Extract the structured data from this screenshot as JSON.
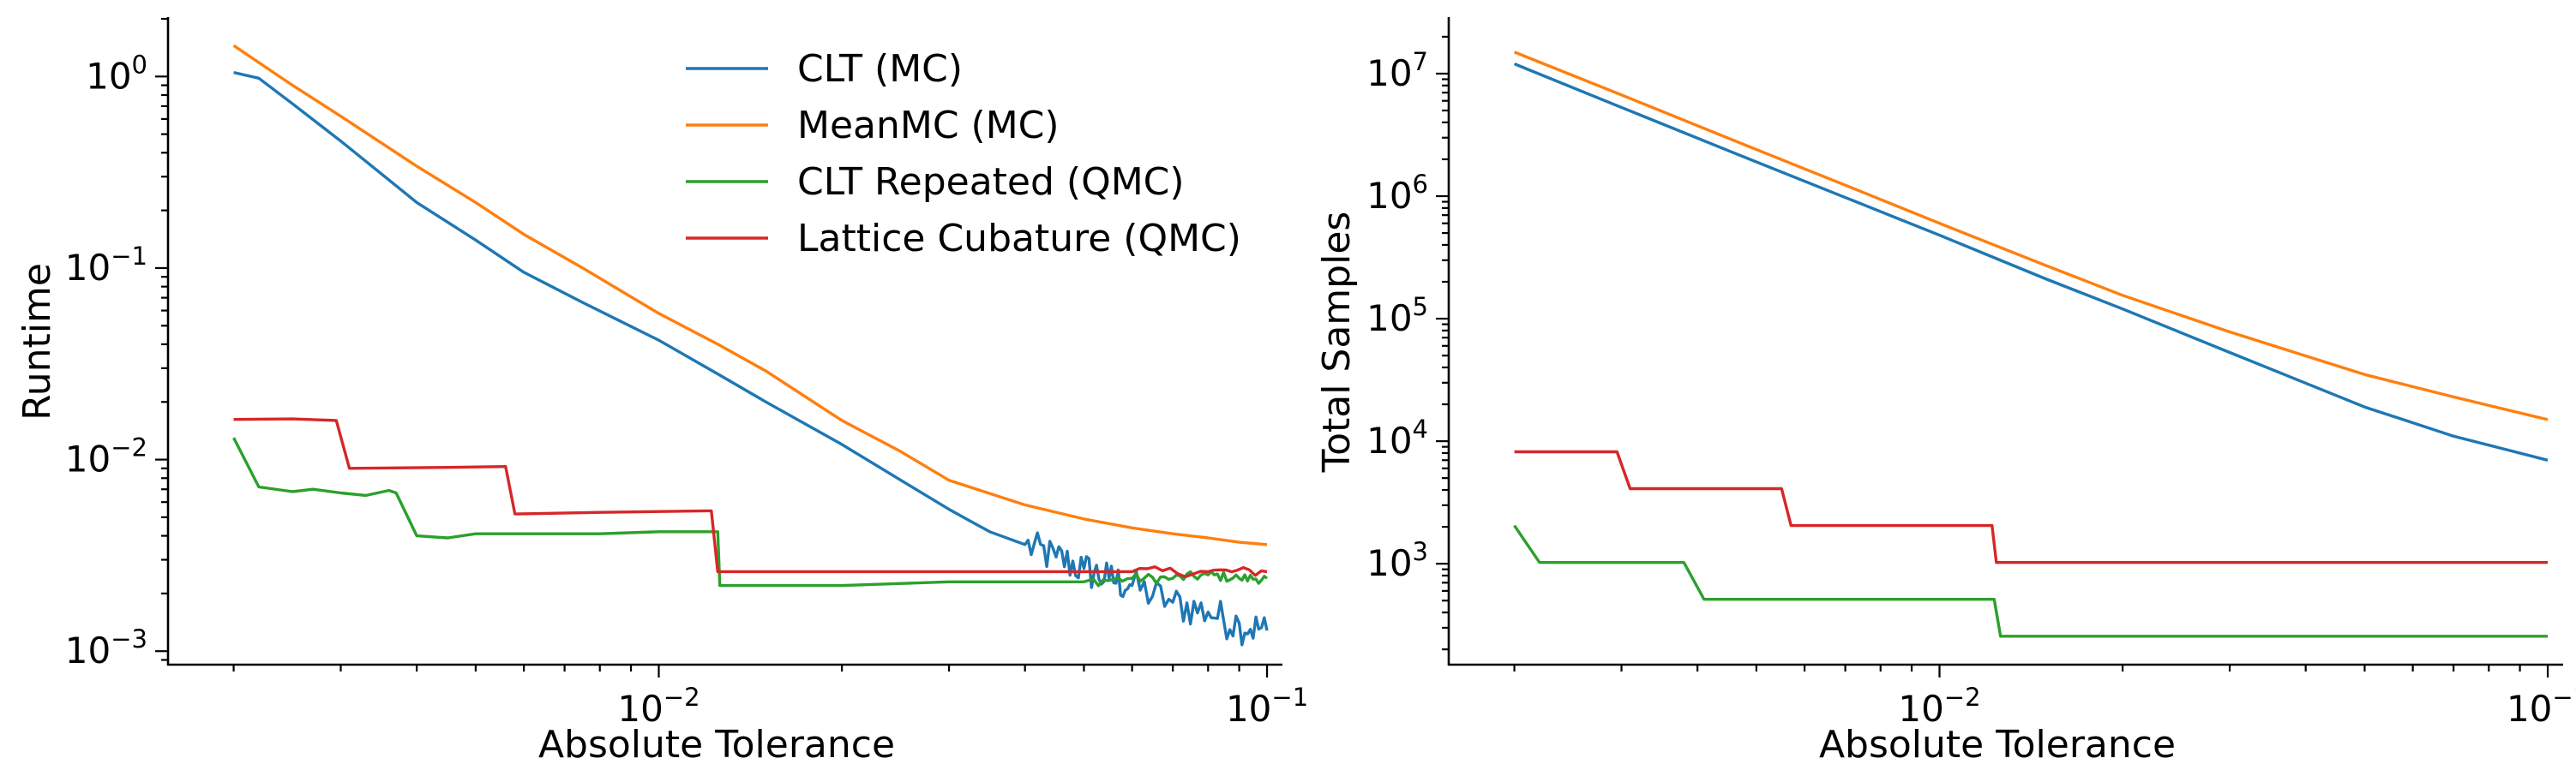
{
  "chart_data": [
    {
      "type": "line",
      "xlabel": "Absolute Tolerance",
      "ylabel": "Runtime",
      "xscale": "log",
      "yscale": "log",
      "xlim": [
        0.00156,
        0.106
      ],
      "ylim": [
        0.00085,
        2.0
      ],
      "xticks": [
        {
          "base": "10",
          "exp": "−2",
          "value": 0.01
        },
        {
          "base": "10",
          "exp": "−1",
          "value": 0.1
        }
      ],
      "yticks": [
        {
          "base": "10",
          "exp": "−3",
          "value": 0.001
        },
        {
          "base": "10",
          "exp": "−2",
          "value": 0.01
        },
        {
          "base": "10",
          "exp": "−1",
          "value": 0.1
        },
        {
          "base": "10",
          "exp": "0",
          "value": 1
        }
      ],
      "legend": "top-center",
      "grid": false,
      "series": [
        {
          "name": "CLT (MC)",
          "color": "#1f77b4",
          "x": [
            0.002,
            0.0022,
            0.0025,
            0.003,
            0.0035,
            0.004,
            0.005,
            0.006,
            0.0075,
            0.01,
            0.0125,
            0.015,
            0.02,
            0.025,
            0.03,
            0.035,
            0.04,
            0.045,
            0.05,
            0.055,
            0.06,
            0.07,
            0.08,
            0.09,
            0.1
          ],
          "y": [
            1.05,
            0.98,
            0.72,
            0.46,
            0.31,
            0.22,
            0.14,
            0.095,
            0.066,
            0.042,
            0.028,
            0.02,
            0.012,
            0.0078,
            0.0055,
            0.0042,
            0.0036,
            0.0031,
            0.0027,
            0.0024,
            0.0022,
            0.0018,
            0.0016,
            0.0014,
            0.00128
          ],
          "noise_from": 0.04
        },
        {
          "name": "MeanMC (MC)",
          "color": "#ff7f0e",
          "x": [
            0.002,
            0.0025,
            0.003,
            0.004,
            0.005,
            0.006,
            0.0075,
            0.01,
            0.0125,
            0.015,
            0.02,
            0.025,
            0.03,
            0.04,
            0.05,
            0.06,
            0.07,
            0.08,
            0.09,
            0.1
          ],
          "y": [
            1.45,
            0.9,
            0.62,
            0.34,
            0.22,
            0.15,
            0.1,
            0.058,
            0.04,
            0.029,
            0.016,
            0.011,
            0.0078,
            0.0058,
            0.0049,
            0.0044,
            0.0041,
            0.0039,
            0.0037,
            0.0036
          ]
        },
        {
          "name": "CLT Repeated (QMC)",
          "color": "#2ca02c",
          "x": [
            0.002,
            0.0022,
            0.0025,
            0.0027,
            0.003,
            0.0033,
            0.0036,
            0.0037,
            0.004,
            0.0045,
            0.005,
            0.006,
            0.008,
            0.01,
            0.0125,
            0.0126,
            0.015,
            0.02,
            0.03,
            0.04,
            0.05,
            0.06,
            0.07,
            0.08,
            0.09,
            0.1
          ],
          "y": [
            0.013,
            0.0072,
            0.0068,
            0.007,
            0.0067,
            0.0065,
            0.0069,
            0.0067,
            0.004,
            0.0039,
            0.0041,
            0.0041,
            0.0041,
            0.0042,
            0.0042,
            0.0022,
            0.0022,
            0.0022,
            0.0023,
            0.0023,
            0.0023,
            0.0024,
            0.0024,
            0.0025,
            0.0024,
            0.0024
          ],
          "noise_from": 0.045
        },
        {
          "name": "Lattice Cubature (QMC)",
          "color": "#d62728",
          "x": [
            0.002,
            0.0025,
            0.00295,
            0.0031,
            0.0045,
            0.0056,
            0.0058,
            0.008,
            0.012,
            0.0122,
            0.0125,
            0.02,
            0.04,
            0.06,
            0.08,
            0.1
          ],
          "y": [
            0.0162,
            0.0163,
            0.016,
            0.009,
            0.0091,
            0.0092,
            0.0052,
            0.0053,
            0.0054,
            0.0054,
            0.0026,
            0.0026,
            0.0026,
            0.0026,
            0.0026,
            0.0026
          ],
          "noise_from": 0.05
        }
      ]
    },
    {
      "type": "line",
      "xlabel": "Absolute Tolerance",
      "ylabel": "Total Samples",
      "xscale": "log",
      "yscale": "log",
      "xlim": [
        0.00156,
        0.106
      ],
      "ylim": [
        150,
        28000000
      ],
      "xticks": [
        {
          "base": "10",
          "exp": "−2",
          "value": 0.01
        },
        {
          "base": "10",
          "exp": "−1",
          "value": 0.1
        }
      ],
      "yticks": [
        {
          "base": "10",
          "exp": "3",
          "value": 1000
        },
        {
          "base": "10",
          "exp": "4",
          "value": 10000
        },
        {
          "base": "10",
          "exp": "5",
          "value": 100000
        },
        {
          "base": "10",
          "exp": "6",
          "value": 1000000
        },
        {
          "base": "10",
          "exp": "7",
          "value": 10000000
        }
      ],
      "grid": false,
      "series": [
        {
          "name": "CLT (MC)",
          "color": "#1f77b4",
          "x": [
            0.002,
            0.003,
            0.005,
            0.0075,
            0.01,
            0.015,
            0.02,
            0.03,
            0.05,
            0.07,
            0.1
          ],
          "y": [
            12000000,
            5300000,
            1900000,
            850000,
            480000,
            210000,
            120000,
            53000,
            19000,
            11000,
            7000
          ]
        },
        {
          "name": "MeanMC (MC)",
          "color": "#ff7f0e",
          "x": [
            0.002,
            0.003,
            0.005,
            0.0075,
            0.01,
            0.015,
            0.02,
            0.03,
            0.05,
            0.07,
            0.1
          ],
          "y": [
            15000000,
            6700000,
            2400000,
            1070000,
            600000,
            270000,
            155000,
            78000,
            35000,
            23000,
            15000
          ]
        },
        {
          "name": "CLT Repeated (QMC)",
          "color": "#2ca02c",
          "x": [
            0.002,
            0.0022,
            0.0038,
            0.0041,
            0.0123,
            0.0126,
            0.1
          ],
          "y": [
            2048,
            1024,
            1024,
            512,
            512,
            256,
            256
          ]
        },
        {
          "name": "Lattice Cubature (QMC)",
          "color": "#d62728",
          "x": [
            0.002,
            0.00295,
            0.0031,
            0.0055,
            0.0057,
            0.0122,
            0.0124,
            0.1
          ],
          "y": [
            8192,
            8192,
            4096,
            4096,
            2048,
            2048,
            1024,
            1024
          ]
        }
      ]
    }
  ]
}
